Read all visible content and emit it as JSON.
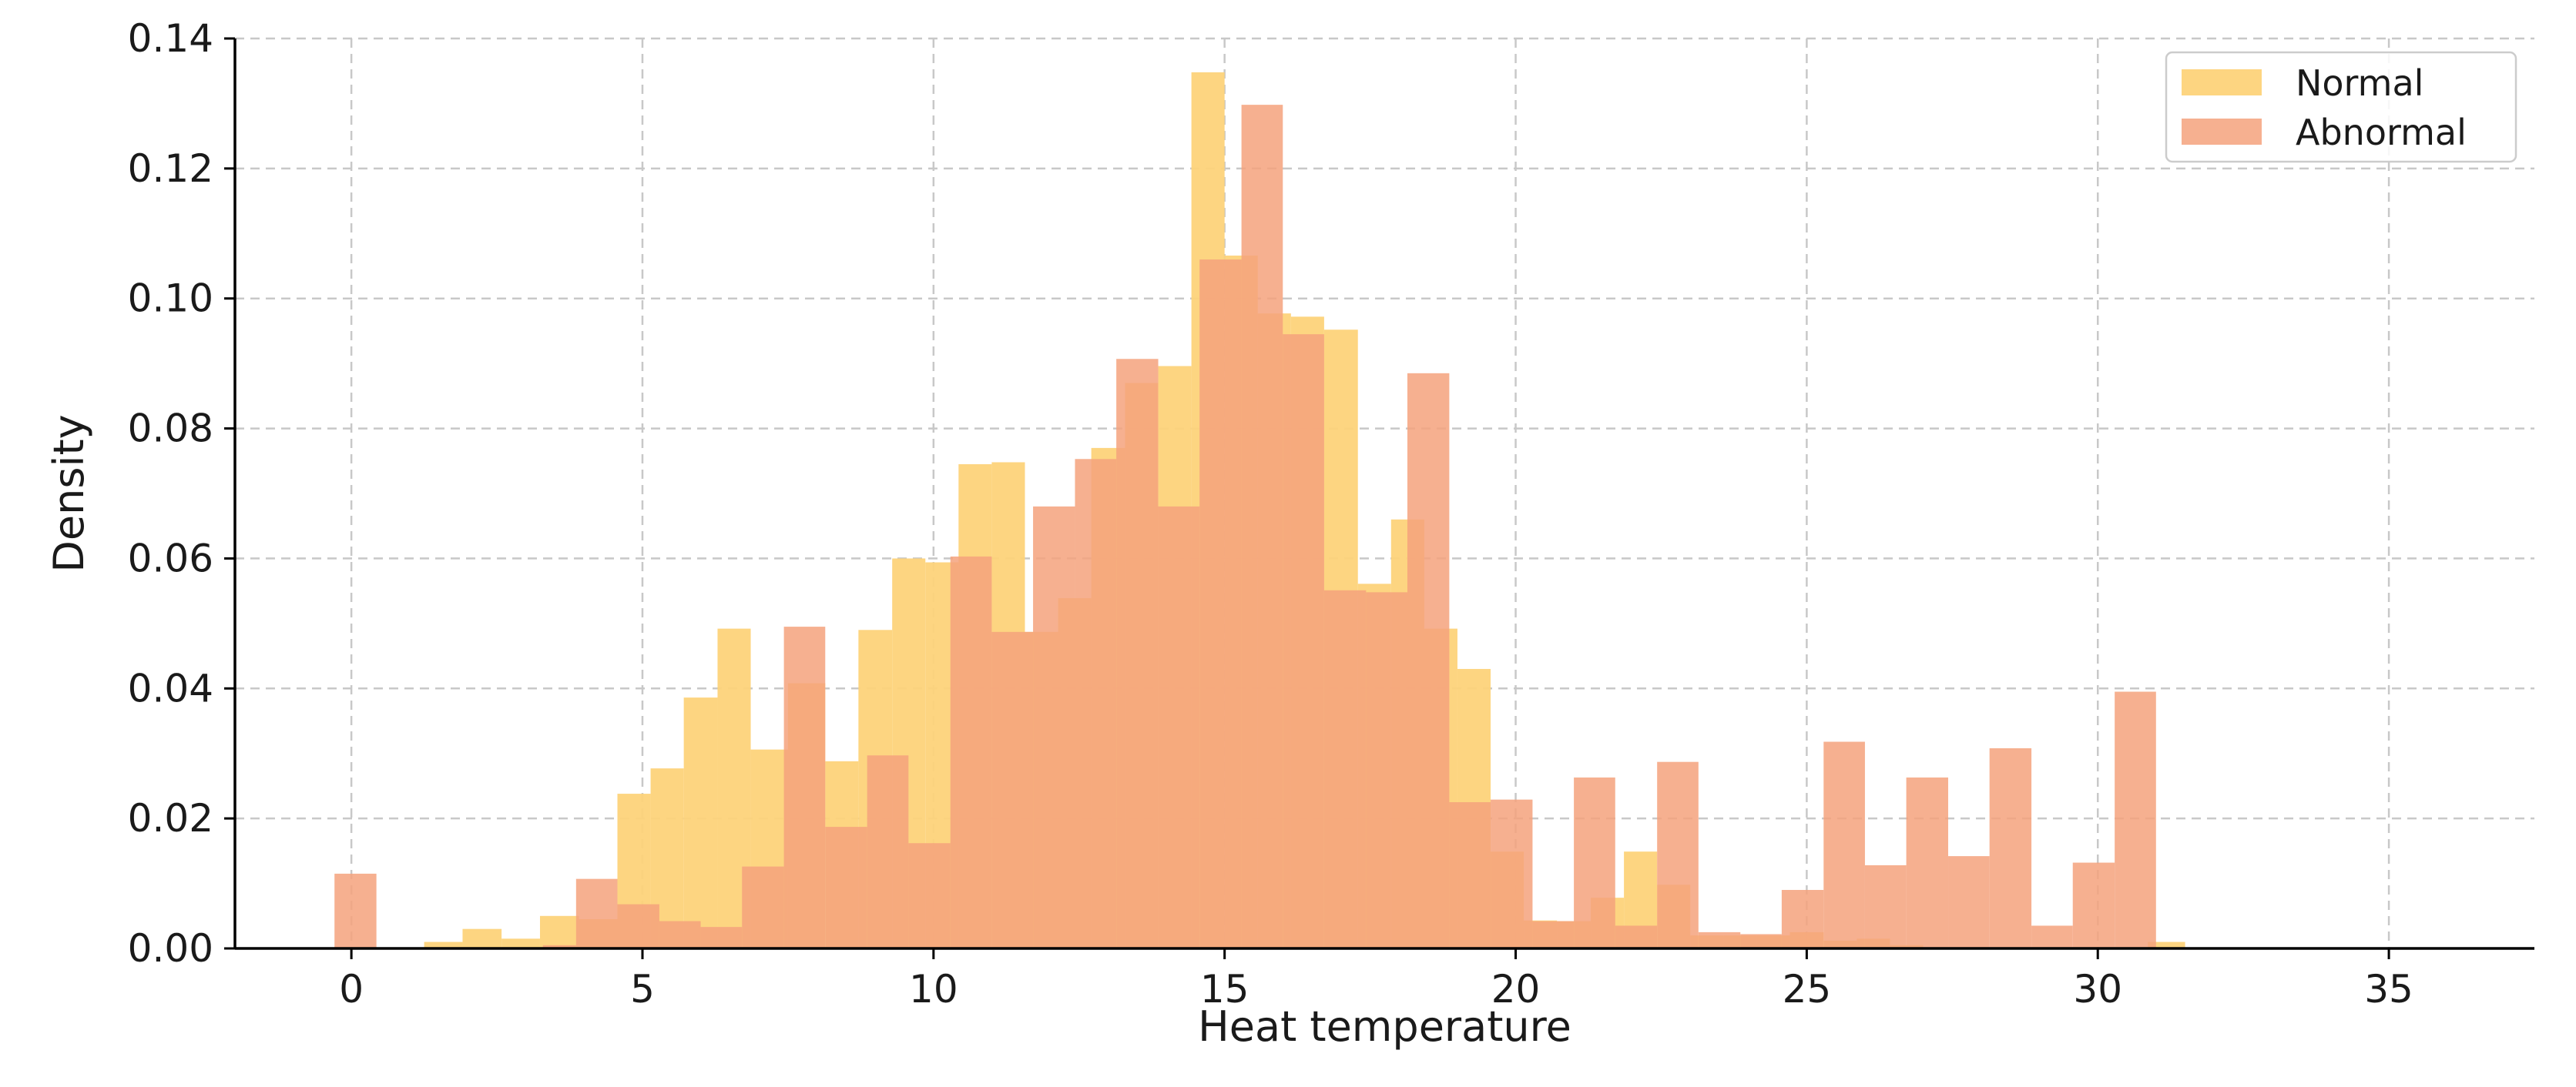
{
  "chart_data": {
    "type": "bar",
    "subtype": "overlapping-histogram",
    "title": "",
    "xlabel": "Heat temperature",
    "ylabel": "Density",
    "xlim": [
      -2,
      37.5
    ],
    "ylim": [
      0,
      0.14
    ],
    "xticks": [
      0,
      5,
      10,
      15,
      20,
      25,
      30,
      35
    ],
    "xtick_labels": [
      "0",
      "5",
      "10",
      "15",
      "20",
      "25",
      "30",
      "35"
    ],
    "yticks": [
      0,
      0.02,
      0.04,
      0.06,
      0.08,
      0.1,
      0.12,
      0.14
    ],
    "ytick_labels": [
      "0.00",
      "0.02",
      "0.04",
      "0.06",
      "0.08",
      "0.10",
      "0.12",
      "0.14"
    ],
    "grid": true,
    "legend_position": "top-right",
    "series": [
      {
        "name": "Normal",
        "color": "#fdd37a",
        "opacity": 0.95,
        "bins": [
          [
            1.25,
            1.91,
            0.001
          ],
          [
            1.91,
            2.58,
            0.003
          ],
          [
            2.58,
            3.24,
            0.0015
          ],
          [
            3.24,
            3.91,
            0.005
          ],
          [
            3.91,
            4.57,
            0.0045
          ],
          [
            4.57,
            5.14,
            0.0238
          ],
          [
            5.14,
            5.71,
            0.0277
          ],
          [
            5.71,
            6.29,
            0.0386
          ],
          [
            6.29,
            6.86,
            0.0492
          ],
          [
            6.86,
            7.5,
            0.0306
          ],
          [
            7.5,
            8.14,
            0.0408
          ],
          [
            8.14,
            8.71,
            0.0288
          ],
          [
            8.71,
            9.29,
            0.049
          ],
          [
            9.29,
            9.86,
            0.06
          ],
          [
            9.86,
            10.43,
            0.0594
          ],
          [
            10.43,
            11.0,
            0.0745
          ],
          [
            11.0,
            11.57,
            0.0748
          ],
          [
            11.57,
            12.14,
            0.0487
          ],
          [
            12.14,
            12.71,
            0.0539
          ],
          [
            12.71,
            13.29,
            0.077
          ],
          [
            13.29,
            13.86,
            0.087
          ],
          [
            13.86,
            14.43,
            0.0896
          ],
          [
            14.43,
            15.0,
            0.1348
          ],
          [
            15.0,
            15.57,
            0.1066
          ],
          [
            15.57,
            16.14,
            0.0977
          ],
          [
            16.14,
            16.71,
            0.0972
          ],
          [
            16.71,
            17.29,
            0.0952
          ],
          [
            17.29,
            17.86,
            0.0561
          ],
          [
            17.86,
            18.43,
            0.066
          ],
          [
            18.43,
            19.0,
            0.0492
          ],
          [
            19.0,
            19.57,
            0.043
          ],
          [
            19.57,
            20.14,
            0.0149
          ],
          [
            20.14,
            20.71,
            0.0043
          ],
          [
            20.71,
            21.29,
            0.0042
          ],
          [
            21.29,
            21.86,
            0.0078
          ],
          [
            21.86,
            22.43,
            0.0149
          ],
          [
            22.43,
            23.0,
            0.0098
          ],
          [
            23.0,
            23.57,
            0.002
          ],
          [
            23.57,
            24.14,
            0.002
          ],
          [
            24.14,
            24.71,
            0.002
          ],
          [
            24.71,
            25.29,
            0.0025
          ],
          [
            25.29,
            25.86,
            0.0012
          ],
          [
            25.86,
            26.43,
            0.0015
          ],
          [
            26.43,
            27.0,
            0.0005
          ],
          [
            30.86,
            31.5,
            0.001
          ]
        ]
      },
      {
        "name": "Abnormal",
        "color": "#f4a27d",
        "opacity": 0.85,
        "bins": [
          [
            -0.29,
            0.43,
            0.0115
          ],
          [
            3.29,
            3.86,
            0.0005
          ],
          [
            3.86,
            4.57,
            0.0107
          ],
          [
            4.57,
            5.29,
            0.0068
          ],
          [
            5.29,
            6.0,
            0.0042
          ],
          [
            6.0,
            6.71,
            0.0033
          ],
          [
            6.71,
            7.43,
            0.0126
          ],
          [
            7.43,
            8.14,
            0.0495
          ],
          [
            8.14,
            8.86,
            0.0187
          ],
          [
            8.86,
            9.57,
            0.0297
          ],
          [
            9.57,
            10.29,
            0.0162
          ],
          [
            10.29,
            11.0,
            0.0603
          ],
          [
            11.0,
            11.71,
            0.0487
          ],
          [
            11.71,
            12.43,
            0.068
          ],
          [
            12.43,
            13.14,
            0.0753
          ],
          [
            13.14,
            13.86,
            0.0907
          ],
          [
            13.86,
            14.57,
            0.068
          ],
          [
            14.57,
            15.29,
            0.106
          ],
          [
            15.29,
            16.0,
            0.1298
          ],
          [
            16.0,
            16.71,
            0.0945
          ],
          [
            16.71,
            17.43,
            0.0551
          ],
          [
            17.43,
            18.14,
            0.0548
          ],
          [
            18.14,
            18.86,
            0.0885
          ],
          [
            18.86,
            19.57,
            0.0225
          ],
          [
            19.57,
            20.29,
            0.0229
          ],
          [
            20.29,
            21.0,
            0.0042
          ],
          [
            21.0,
            21.71,
            0.0263
          ],
          [
            21.71,
            22.43,
            0.0035
          ],
          [
            22.43,
            23.14,
            0.0287
          ],
          [
            23.14,
            23.86,
            0.0025
          ],
          [
            23.86,
            24.57,
            0.0022
          ],
          [
            24.57,
            25.29,
            0.009
          ],
          [
            25.29,
            26.0,
            0.0318
          ],
          [
            26.0,
            26.71,
            0.0128
          ],
          [
            26.71,
            27.43,
            0.0263
          ],
          [
            27.43,
            28.14,
            0.0142
          ],
          [
            28.14,
            28.86,
            0.0308
          ],
          [
            28.86,
            29.57,
            0.0035
          ],
          [
            29.57,
            30.29,
            0.0132
          ],
          [
            30.29,
            31.0,
            0.0395
          ]
        ]
      }
    ]
  }
}
